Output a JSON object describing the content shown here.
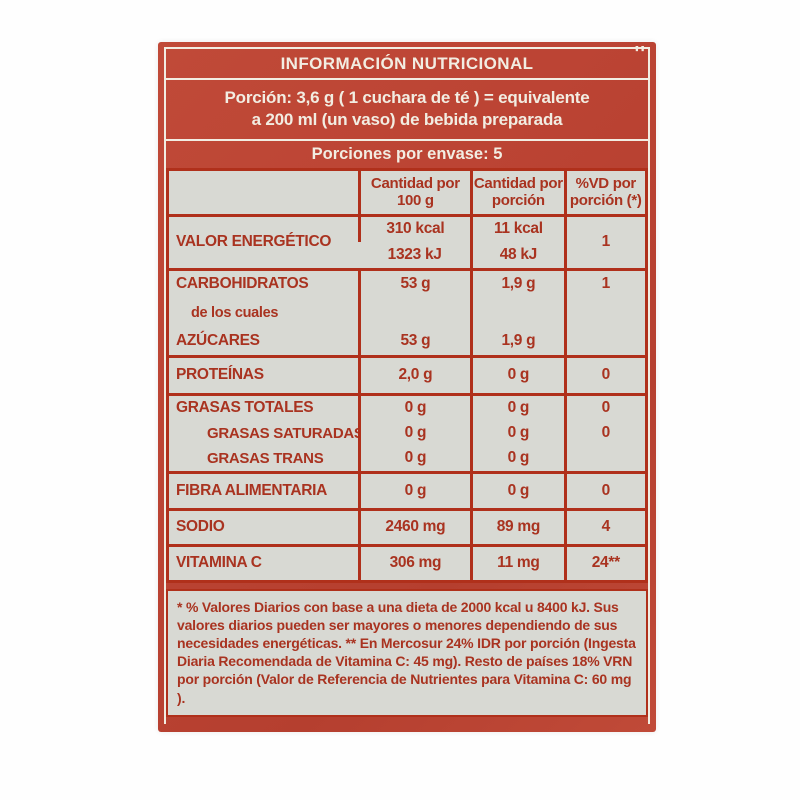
{
  "label": {
    "title": "INFORMACIÓN NUTRICIONAL",
    "portion_line1": "Porción: 3,6 g ( 1 cuchara de té ) = equivalente",
    "portion_line2": "a 200 ml (un vaso) de bebida preparada",
    "servings": "Porciones por envase: 5",
    "corner_marks": "''"
  },
  "table": {
    "col_headers": {
      "per100_l1": "Cantidad por",
      "per100_l2": "100 g",
      "perserv_l1": "Cantidad por",
      "perserv_l2": "porción",
      "vd_l1": "%VD por",
      "vd_l2": "porción (*)"
    },
    "rows": {
      "energia": {
        "label": "VALOR ENERGÉTICO",
        "v100a": "310 kcal",
        "v100b": "1323 kJ",
        "vpa": "11 kcal",
        "vpb": "48 kJ",
        "vd": "1"
      },
      "carbo": {
        "label": "CARBOHIDRATOS",
        "sub": "de los cuales",
        "v100": "53 g",
        "vp": "1,9 g",
        "vd": "1"
      },
      "azucares": {
        "label": "AZÚCARES",
        "v100": "53 g",
        "vp": "1,9 g",
        "vd": ""
      },
      "proteinas": {
        "label": "PROTEÍNAS",
        "v100": "2,0 g",
        "vp": "0 g",
        "vd": "0"
      },
      "grasas_totales": {
        "label": "GRASAS TOTALES",
        "v100": "0 g",
        "vp": "0 g",
        "vd": "0"
      },
      "grasas_saturadas": {
        "label": "GRASAS SATURADAS",
        "v100": "0 g",
        "vp": "0 g",
        "vd": "0"
      },
      "grasas_trans": {
        "label": "GRASAS TRANS",
        "v100": "0 g",
        "vp": "0 g",
        "vd": ""
      },
      "fibra": {
        "label": "FIBRA ALIMENTARIA",
        "v100": "0 g",
        "vp": "0 g",
        "vd": "0"
      },
      "sodio": {
        "label": "SODIO",
        "v100": "2460 mg",
        "vp": "89 mg",
        "vd": "4"
      },
      "vitamina_c": {
        "label": "VITAMINA C",
        "v100": "306 mg",
        "vp": "11 mg",
        "vd": "24**"
      }
    }
  },
  "footnote": {
    "text": "* % Valores Diarios con base a una dieta de 2000 kcal u 8400 kJ. Sus valores diarios pueden ser mayores o menores dependiendo de sus necesidades energéticas. ** En Mercosur 24% IDR por porción (Ingesta Diaria Recomendada de Vitamina C: 45 mg). Resto de países 18% VRN por porción (Valor de Referencia de Nutrientes para Vitamina C: 60 mg )."
  },
  "colors": {
    "package_red": "#bc4434",
    "border_red": "#b0301b",
    "text_red": "#a93320",
    "panel_gray": "#d8d9d3",
    "text_white": "#f2ede2"
  }
}
